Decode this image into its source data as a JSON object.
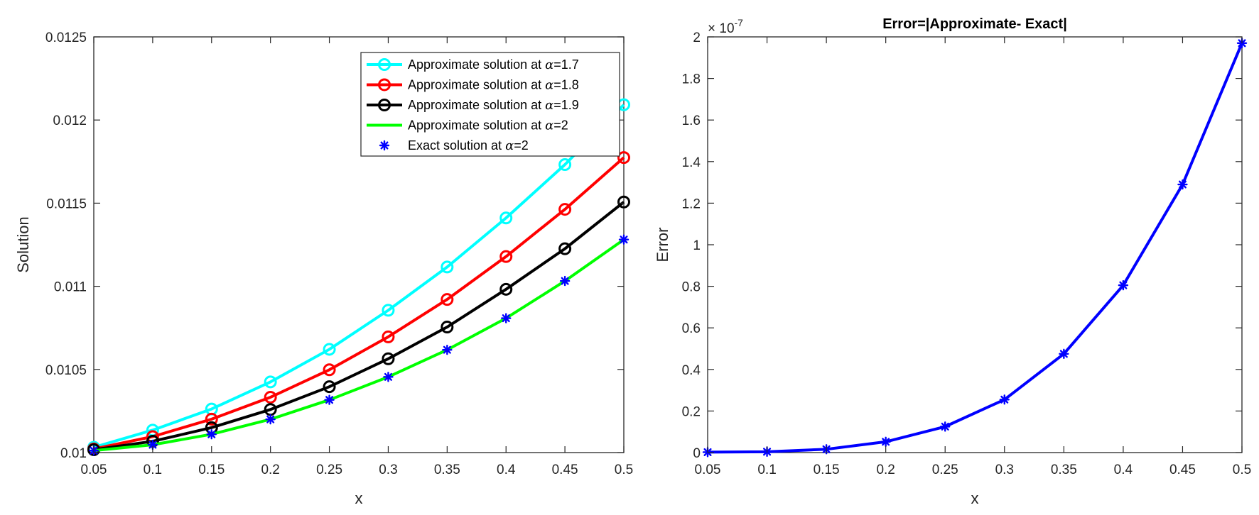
{
  "chart_data": [
    {
      "type": "line",
      "title": "",
      "xlabel": "x",
      "ylabel": "Solution",
      "xlim": [
        0.05,
        0.5
      ],
      "ylim": [
        0.01,
        0.0125
      ],
      "x": [
        0.05,
        0.1,
        0.15,
        0.2,
        0.25,
        0.3,
        0.35,
        0.4,
        0.45,
        0.5
      ],
      "xticks": [
        "0.05",
        "0.1",
        "0.15",
        "0.2",
        "0.25",
        "0.3",
        "0.35",
        "0.4",
        "0.45",
        "0.5"
      ],
      "yticks": [
        "0.01",
        "0.0105",
        "0.011",
        "0.0115",
        "0.012",
        "0.0125"
      ],
      "ytick_values": [
        0.01,
        0.0105,
        0.011,
        0.0115,
        0.012,
        0.0125
      ],
      "legend_location": "top-right",
      "series": [
        {
          "name": "Approximate solution at",
          "alpha": "α",
          "param": "=1.7",
          "color": "#00ffff",
          "marker": "circle",
          "line": true,
          "values": [
            0.010032,
            0.010135,
            0.010262,
            0.010425,
            0.010621,
            0.010856,
            0.011116,
            0.011411,
            0.011732,
            0.012092
          ]
        },
        {
          "name": "Approximate solution at",
          "alpha": "α",
          "param": "=1.8",
          "color": "#ff0000",
          "marker": "circle",
          "line": true,
          "values": [
            0.010022,
            0.010096,
            0.010201,
            0.010333,
            0.010498,
            0.010696,
            0.010921,
            0.011179,
            0.011463,
            0.011774
          ]
        },
        {
          "name": "Approximate solution at",
          "alpha": "α",
          "param": "=1.9",
          "color": "#000000",
          "marker": "circle",
          "line": true,
          "values": [
            0.010017,
            0.010068,
            0.01015,
            0.010259,
            0.010396,
            0.010564,
            0.010755,
            0.010982,
            0.011226,
            0.011507
          ]
        },
        {
          "name": "Approximate solution at",
          "alpha": "α",
          "param": "=2",
          "color": "#00ff00",
          "marker": "none",
          "line": true,
          "values": [
            0.010012,
            0.010047,
            0.01011,
            0.0102,
            0.010317,
            0.010455,
            0.010618,
            0.010808,
            0.011032,
            0.011281
          ]
        },
        {
          "name": "Exact solution at",
          "alpha": "α",
          "param": "=2",
          "color": "#0000ff",
          "marker": "star",
          "line": false,
          "values": [
            0.010012,
            0.010047,
            0.01011,
            0.0102,
            0.010317,
            0.010455,
            0.010618,
            0.010808,
            0.011032,
            0.011281
          ]
        }
      ]
    },
    {
      "type": "line",
      "title": "Error=|Approximate- Exact|",
      "xlabel": "x",
      "ylabel": "Error",
      "xlim": [
        0.05,
        0.5
      ],
      "ylim": [
        0,
        2
      ],
      "exponent_label": "× 10",
      "exponent_power": "-7",
      "x": [
        0.05,
        0.1,
        0.15,
        0.2,
        0.25,
        0.3,
        0.35,
        0.4,
        0.45,
        0.5
      ],
      "xticks": [
        "0.05",
        "0.1",
        "0.15",
        "0.2",
        "0.25",
        "0.3",
        "0.35",
        "0.4",
        "0.45",
        "0.5"
      ],
      "yticks": [
        "0",
        "0.2",
        "0.4",
        "0.6",
        "0.8",
        "1",
        "1.2",
        "1.4",
        "1.6",
        "1.8",
        "2"
      ],
      "ytick_values": [
        0,
        0.2,
        0.4,
        0.6,
        0.8,
        1,
        1.2,
        1.4,
        1.6,
        1.8,
        2
      ],
      "series": [
        {
          "name": "Error",
          "color": "#0000ff",
          "marker": "star",
          "line": true,
          "values": [
            0.002,
            0.004,
            0.016,
            0.052,
            0.125,
            0.255,
            0.475,
            0.805,
            1.29,
            1.97
          ]
        }
      ]
    }
  ]
}
